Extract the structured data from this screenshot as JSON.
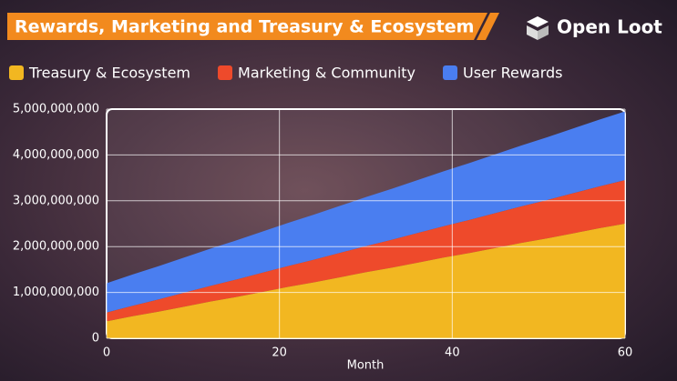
{
  "header": {
    "title": "Rewards, Marketing and Treasury & Ecosystem",
    "brand": "Open Loot"
  },
  "chart_data": {
    "type": "stacked_area",
    "x_label": "Month",
    "x": [
      0,
      3,
      6,
      9,
      12,
      15,
      18,
      21,
      24,
      27,
      30,
      33,
      36,
      39,
      42,
      45,
      48,
      51,
      54,
      57,
      60
    ],
    "series": [
      {
        "name": "Treasury & Ecosystem",
        "color": "#f2b721",
        "values": [
          370000000,
          480000000,
          580000000,
          690000000,
          800000000,
          900000000,
          1010000000,
          1120000000,
          1220000000,
          1330000000,
          1440000000,
          1540000000,
          1650000000,
          1760000000,
          1860000000,
          1970000000,
          2080000000,
          2180000000,
          2290000000,
          2400000000,
          2500000000
        ]
      },
      {
        "name": "Marketing & Community",
        "color": "#ee4a2b",
        "values": [
          190000000,
          228000000,
          266000000,
          304000000,
          342000000,
          380000000,
          418000000,
          456000000,
          494000000,
          532000000,
          570000000,
          608000000,
          646000000,
          684000000,
          722000000,
          760000000,
          798000000,
          836000000,
          874000000,
          912000000,
          950000000
        ]
      },
      {
        "name": "User Rewards",
        "color": "#4a7ef0",
        "values": [
          640000000,
          683000000,
          726000000,
          769000000,
          812000000,
          855000000,
          898000000,
          941000000,
          984000000,
          1027000000,
          1070000000,
          1113000000,
          1156000000,
          1199000000,
          1242000000,
          1285000000,
          1328000000,
          1371000000,
          1414000000,
          1457000000,
          1500000000
        ]
      }
    ],
    "xlim": [
      0,
      60
    ],
    "xticks": [
      0,
      20,
      40,
      60
    ],
    "ylim": [
      0,
      5000000000
    ],
    "yticks": [
      0,
      {
        "value": 1000000000,
        "label": "1,000,000,000"
      },
      {
        "value": 2000000000,
        "label": "2,000,000,000"
      },
      {
        "value": 3000000000,
        "label": "3,000,000,000"
      },
      {
        "value": 4000000000,
        "label": "4,000,000,000"
      },
      {
        "value": 5000000000,
        "label": "5,000,000,000"
      }
    ],
    "grid": true
  }
}
